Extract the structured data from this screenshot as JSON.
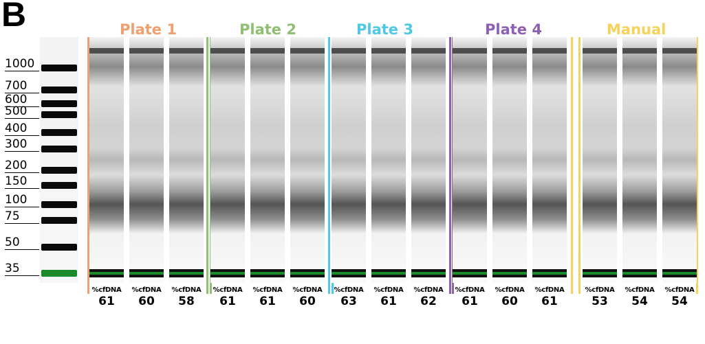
{
  "panel_label": "B",
  "colors": {
    "plate1": "#f0a070",
    "plate2": "#8fbf72",
    "plate3": "#4fc8e6",
    "plate4": "#8e5fb3",
    "manual": "#f5d25a",
    "marker_green": "#1a8a2a"
  },
  "ladder_sizes": [
    "1000",
    "700",
    "600",
    "500",
    "400",
    "300",
    "200",
    "150",
    "100",
    "75",
    "50",
    "35"
  ],
  "groups": [
    {
      "name": "Plate 1",
      "color_key": "plate1",
      "lanes": [
        {
          "caption": "%cfDNA",
          "value": "61"
        },
        {
          "caption": "%cfDNA",
          "value": "60"
        },
        {
          "caption": "%cfDNA",
          "value": "58"
        }
      ]
    },
    {
      "name": "Plate 2",
      "color_key": "plate2",
      "lanes": [
        {
          "caption": "%cfDNA",
          "value": "61"
        },
        {
          "caption": "%cfDNA",
          "value": "61"
        },
        {
          "caption": "%cfDNA",
          "value": "60"
        }
      ]
    },
    {
      "name": "Plate 3",
      "color_key": "plate3",
      "lanes": [
        {
          "caption": "%cfDNA",
          "value": "63"
        },
        {
          "caption": "%cfDNA",
          "value": "61"
        },
        {
          "caption": "%cfDNA",
          "value": "62"
        }
      ]
    },
    {
      "name": "Plate 4",
      "color_key": "plate4",
      "lanes": [
        {
          "caption": "%cfDNA",
          "value": "61"
        },
        {
          "caption": "%cfDNA",
          "value": "60"
        },
        {
          "caption": "%cfDNA",
          "value": "61"
        }
      ]
    },
    {
      "name": "Manual",
      "color_key": "manual",
      "lanes": [
        {
          "caption": "%cfDNA",
          "value": "53"
        },
        {
          "caption": "%cfDNA",
          "value": "54"
        },
        {
          "caption": "%cfDNA",
          "value": "54"
        }
      ]
    }
  ]
}
